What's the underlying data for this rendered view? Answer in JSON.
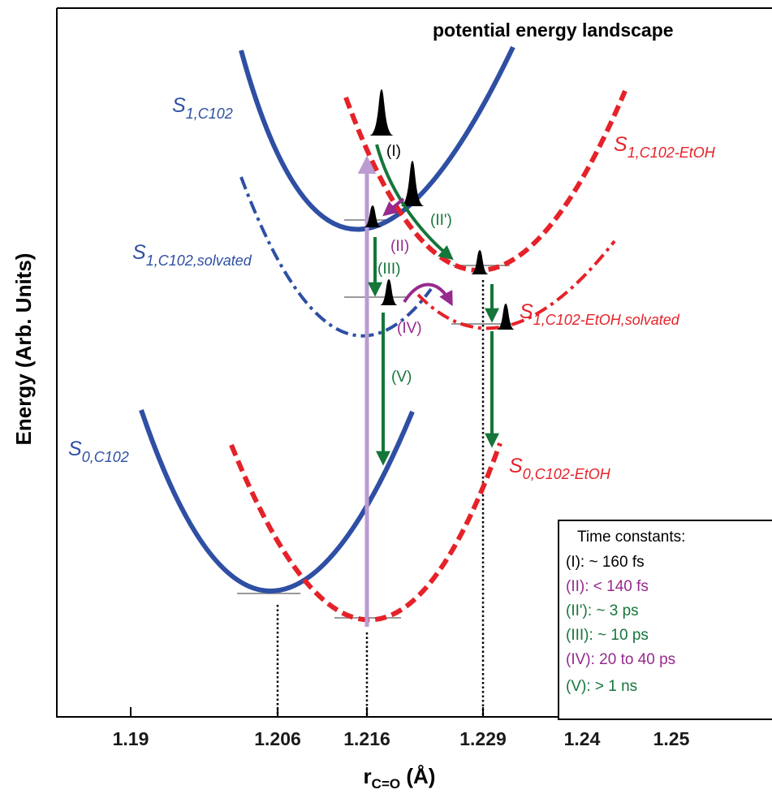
{
  "title": "potential energy landscape",
  "y_axis_label": "Energy (Arb. Units)",
  "x_axis_label": {
    "main": "r",
    "sub": "C=O",
    "unit": " (Å)"
  },
  "x_ticks": [
    "1.19",
    "1.206",
    "1.216",
    "1.229",
    "1.24",
    "1.25"
  ],
  "x_tick_values": [
    1.19,
    1.206,
    1.216,
    1.229,
    1.24,
    1.25
  ],
  "colors": {
    "blue": "#2e4fa3",
    "red": "#e52229",
    "green": "#15763a",
    "purple": "#962a8d",
    "lavender": "#bb9bd2",
    "black": "#000000",
    "level": "#9a9a9a"
  },
  "curves": {
    "s1_c102": {
      "main": "S",
      "sub": "1,C102"
    },
    "s1_c102_etoh": {
      "main": "S",
      "sub": "1,C102-EtOH"
    },
    "s1_c102_solvated": {
      "main": "S",
      "sub": "1,C102,solvated"
    },
    "s1_c102_etoh_solvated": {
      "main": "S",
      "sub": "1,C102-EtOH,solvated"
    },
    "s0_c102": {
      "main": "S",
      "sub": "0,C102"
    },
    "s0_c102_etoh": {
      "main": "S",
      "sub": "0,C102-EtOH"
    }
  },
  "steps": {
    "I": "(I)",
    "II": "(II)",
    "II_prime": "(II')",
    "III": "(III)",
    "IV": "(IV)",
    "V": "(V)"
  },
  "legend": {
    "heading": "Time constants:",
    "entries": [
      {
        "text": "(I):  ~ 160 fs",
        "color": "#000000"
      },
      {
        "text": "(II): < 140 fs",
        "color": "#962a8d"
      },
      {
        "text": "(II'): ~ 3 ps",
        "color": "#15763a"
      },
      {
        "text": "(III): ~ 10 ps",
        "color": "#15763a"
      },
      {
        "text": "(IV): 20 to 40 ps",
        "color": "#962a8d"
      },
      {
        "text": "(V):  > 1 ns",
        "color": "#15763a"
      }
    ]
  }
}
